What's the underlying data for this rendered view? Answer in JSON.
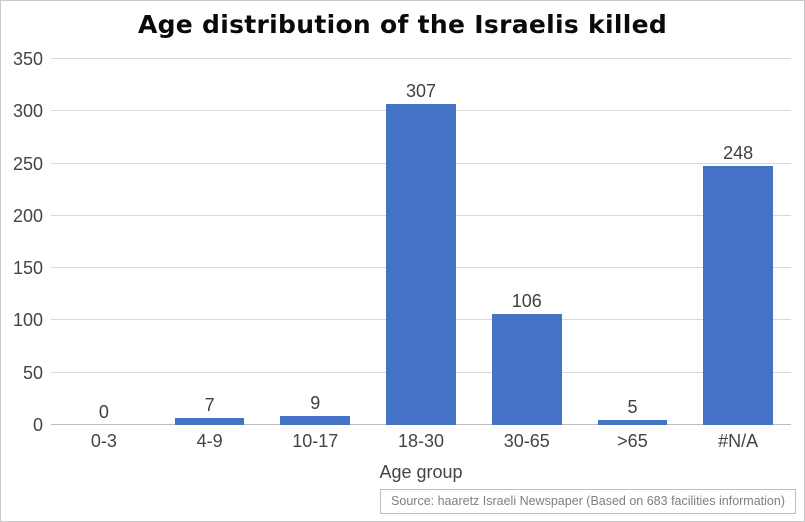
{
  "chart_data": {
    "type": "bar",
    "title": "Age distribution of the Israelis killed",
    "categories": [
      "0-3",
      "4-9",
      "10-17",
      "18-30",
      "30-65",
      ">65",
      "#N/A"
    ],
    "values": [
      0,
      7,
      9,
      307,
      106,
      5,
      248
    ],
    "xlabel": "Age group",
    "ylabel": "",
    "ylim": [
      0,
      350
    ],
    "y_ticks": [
      0,
      50,
      100,
      150,
      200,
      250,
      300,
      350
    ],
    "grid": true,
    "legend": false,
    "bar_color": "#4472C4",
    "gridline_color": "#d9d9d9"
  },
  "source_note": "Source: haaretz Israeli Newspaper (Based on 683 facilities information)"
}
